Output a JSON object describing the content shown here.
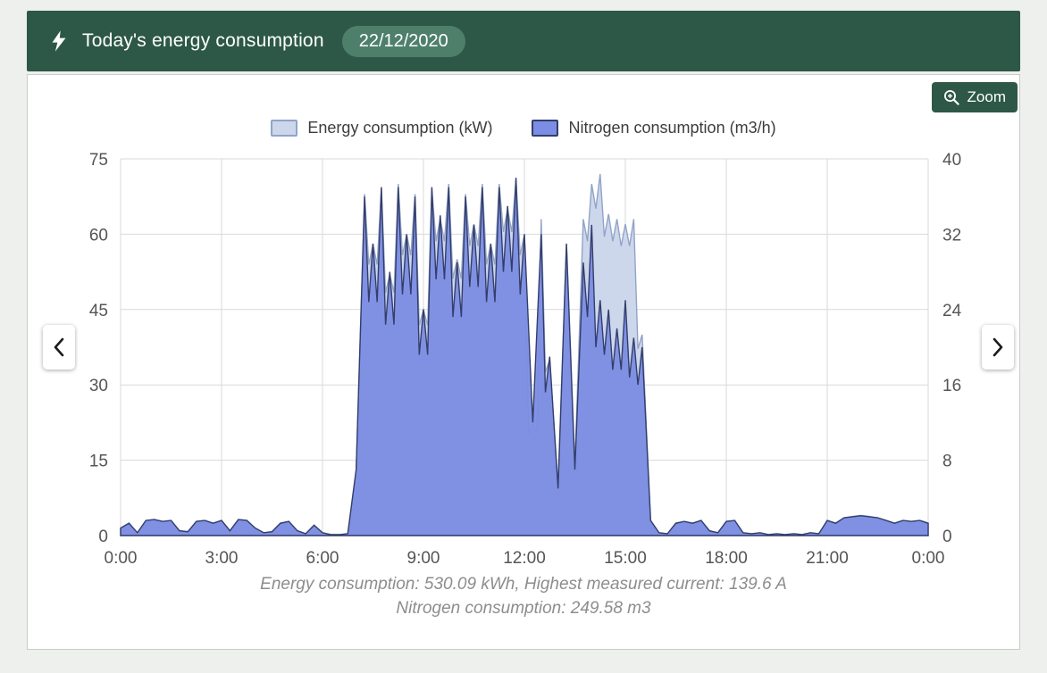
{
  "header": {
    "title": "Today's energy consumption",
    "date_badge": "22/12/2020"
  },
  "toolbar": {
    "zoom_label": "Zoom"
  },
  "legend": {
    "items": [
      {
        "label": "Energy consumption (kW)"
      },
      {
        "label": "Nitrogen consumption (m3/h)"
      }
    ]
  },
  "caption": {
    "line1": "Energy consumption: 530.09 kWh, Highest measured current: 139.6 A",
    "line2": "Nitrogen consumption: 249.58 m3"
  },
  "colors": {
    "header_bg": "#2d5847",
    "badge_bg": "#4e7f6a",
    "accent": "#2d5847",
    "energy_fill": "#cdd7ec",
    "energy_stroke": "#92a3c8",
    "nitrogen_fill": "#7b8de4",
    "nitrogen_stroke": "#333e6b",
    "grid": "#d9d9d9",
    "axis_text": "#555555"
  },
  "chart_data": {
    "type": "area",
    "title": "Today's energy consumption 22/12/2020",
    "legend_position": "top",
    "grid": true,
    "x_hours": [
      0,
      0.25,
      0.5,
      0.75,
      1,
      1.25,
      1.5,
      1.75,
      2,
      2.25,
      2.5,
      2.75,
      3,
      3.25,
      3.5,
      3.75,
      4,
      4.25,
      4.5,
      4.75,
      5,
      5.25,
      5.5,
      5.75,
      6,
      6.25,
      6.5,
      6.75,
      7,
      7.25,
      7.5,
      7.75,
      8,
      8.25,
      8.5,
      8.75,
      9,
      9.25,
      9.5,
      9.75,
      10,
      10.25,
      10.5,
      10.75,
      11,
      11.25,
      11.5,
      11.75,
      12,
      12.25,
      12.5,
      12.75,
      13,
      13.25,
      13.5,
      13.75,
      14,
      14.25,
      14.5,
      14.75,
      15,
      15.25,
      15.5,
      15.75,
      16,
      16.25,
      16.5,
      16.75,
      17,
      17.25,
      17.5,
      17.75,
      18,
      18.25,
      18.5,
      18.75,
      19,
      19.25,
      19.5,
      19.75,
      20,
      20.25,
      20.5,
      20.75,
      21,
      21.25,
      21.5,
      21.75,
      22,
      22.25,
      22.5,
      22.75,
      23,
      23.25,
      23.5,
      23.75,
      24
    ],
    "x_ticks": [
      {
        "v": 0,
        "label": "0:00"
      },
      {
        "v": 3,
        "label": "3:00"
      },
      {
        "v": 6,
        "label": "6:00"
      },
      {
        "v": 9,
        "label": "9:00"
      },
      {
        "v": 12,
        "label": "12:00"
      },
      {
        "v": 15,
        "label": "15:00"
      },
      {
        "v": 18,
        "label": "18:00"
      },
      {
        "v": 21,
        "label": "21:00"
      },
      {
        "v": 24,
        "label": "0:00"
      }
    ],
    "left_axis": {
      "min": 0,
      "max": 75,
      "ticks": [
        0,
        15,
        30,
        45,
        60,
        75
      ]
    },
    "right_axis": {
      "min": 0,
      "max": 40,
      "ticks": [
        0,
        8,
        16,
        24,
        32,
        40
      ]
    },
    "series": [
      {
        "name": "Energy consumption (kW)",
        "axis": "left",
        "values": [
          1.5,
          2.5,
          0.5,
          3,
          3.2,
          2.8,
          3,
          1,
          0.8,
          2.8,
          3,
          2.5,
          3,
          1,
          3.2,
          3,
          1.5,
          0.5,
          0.8,
          2.5,
          2.8,
          1,
          0.3,
          2,
          0.5,
          0.2,
          0.2,
          0.3,
          13,
          68,
          58,
          69,
          52,
          70,
          60,
          68,
          45,
          69,
          63,
          70,
          55,
          68,
          62,
          70,
          58,
          70,
          65,
          71,
          60,
          22,
          63,
          35,
          10,
          58,
          14,
          63,
          70,
          72,
          64,
          63,
          62,
          63,
          40,
          3,
          0.5,
          0.3,
          2.5,
          2.8,
          2.5,
          3,
          1,
          0.5,
          2.8,
          3,
          0.5,
          0.3,
          0.5,
          0.2,
          0.3,
          0.2,
          0.3,
          0.2,
          0.5,
          0.3,
          3,
          2.5,
          3.5,
          3.8,
          4,
          3.8,
          3.5,
          3,
          2.5,
          3,
          2.8,
          3,
          2.5
        ]
      },
      {
        "name": "Nitrogen consumption (m3/h)",
        "axis": "right",
        "values": [
          0.8,
          1.3,
          0.3,
          1.6,
          1.7,
          1.5,
          1.6,
          0.5,
          0.4,
          1.5,
          1.6,
          1.3,
          1.6,
          0.5,
          1.7,
          1.6,
          0.8,
          0.3,
          0.4,
          1.3,
          1.5,
          0.5,
          0.2,
          1.1,
          0.3,
          0.1,
          0.1,
          0.2,
          7,
          36,
          31,
          37,
          28,
          37,
          32,
          36,
          24,
          37,
          34,
          37,
          29,
          36,
          33,
          37,
          31,
          37,
          35,
          38,
          32,
          12,
          32,
          19,
          5,
          31,
          7,
          29,
          33,
          25,
          24,
          22,
          25,
          21,
          20,
          1.6,
          0.3,
          0.2,
          1.3,
          1.5,
          1.3,
          1.6,
          0.5,
          0.3,
          1.5,
          1.6,
          0.3,
          0.2,
          0.3,
          0.1,
          0.2,
          0.1,
          0.2,
          0.1,
          0.3,
          0.2,
          1.6,
          1.3,
          1.9,
          2,
          2.1,
          2,
          1.9,
          1.6,
          1.3,
          1.6,
          1.5,
          1.6,
          1.3
        ]
      }
    ],
    "totals": {
      "energy_kwh": 530.09,
      "highest_current_a": 139.6,
      "nitrogen_m3": 249.58
    }
  }
}
